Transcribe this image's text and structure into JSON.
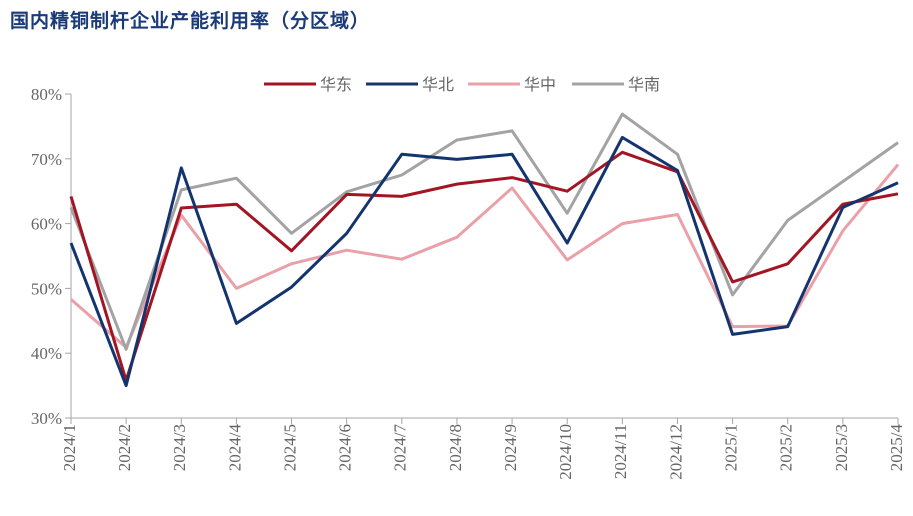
{
  "title": "国内精铜制杆企业产能利用率（分区域）",
  "chart_data": {
    "type": "line",
    "title": "国内精铜制杆企业产能利用率（分区域）",
    "xlabel": "",
    "ylabel": "",
    "categories": [
      "2024/1",
      "2024/2",
      "2024/3",
      "2024/4",
      "2024/5",
      "2024/6",
      "2024/7",
      "2024/8",
      "2024/9",
      "2024/10",
      "2024/11",
      "2024/12",
      "2025/1",
      "2025/2",
      "2025/3",
      "2025/4"
    ],
    "ylim": [
      30,
      80
    ],
    "yticks": [
      "30%",
      "40%",
      "50%",
      "60%",
      "70%",
      "80%"
    ],
    "grid": false,
    "legend_position": "top-center",
    "series": [
      {
        "name": "华东",
        "color": "#a31523",
        "values": [
          64.2,
          35.8,
          62.4,
          63.0,
          55.8,
          64.5,
          64.2,
          66.1,
          67.1,
          65.0,
          71.0,
          68.0,
          51.0,
          53.8,
          63.0,
          64.6
        ]
      },
      {
        "name": "华北",
        "color": "#14346e",
        "values": [
          57.0,
          35.0,
          68.6,
          44.6,
          50.2,
          58.5,
          70.7,
          69.9,
          70.7,
          57.0,
          73.3,
          68.2,
          42.9,
          44.1,
          62.5,
          66.3
        ]
      },
      {
        "name": "华中",
        "color": "#eaa0a8",
        "values": [
          48.3,
          40.9,
          61.3,
          50.0,
          53.8,
          55.9,
          54.5,
          57.9,
          65.5,
          54.4,
          60.0,
          61.4,
          44.1,
          44.2,
          58.9,
          69.1
        ]
      },
      {
        "name": "华南",
        "color": "#a3a3a3",
        "values": [
          62.5,
          40.6,
          65.2,
          67.0,
          58.5,
          64.9,
          67.5,
          72.9,
          74.3,
          61.6,
          76.9,
          70.7,
          49.0,
          60.5,
          66.5,
          72.5
        ]
      }
    ]
  }
}
